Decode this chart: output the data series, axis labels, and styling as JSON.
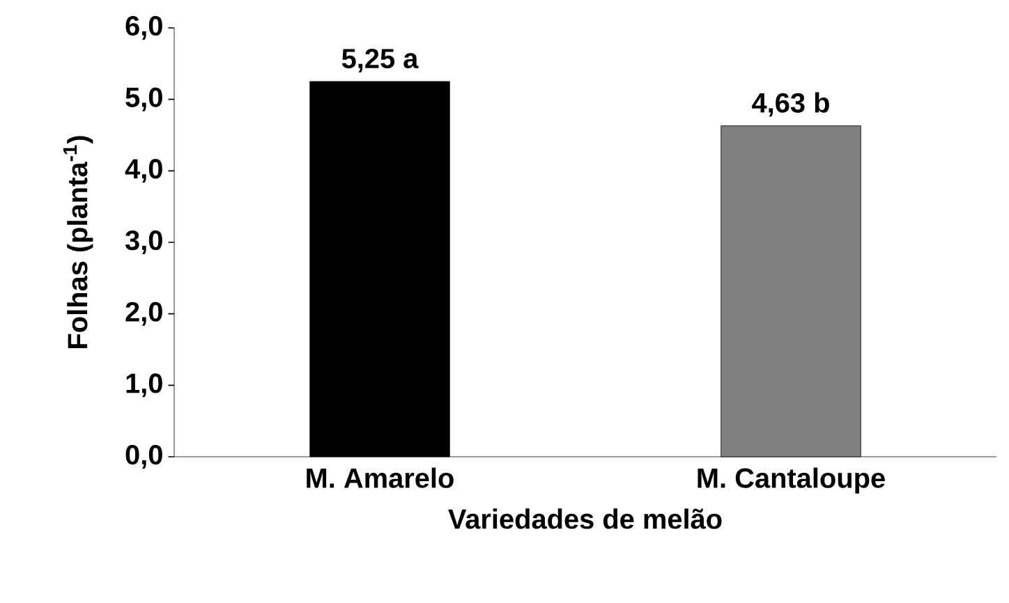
{
  "chart_data": {
    "type": "bar",
    "xlabel": "Variedades de melão",
    "ylabel": "Folhas (planta$^{-1}$)",
    "categories": [
      "M. Amarelo",
      "M. Cantaloupe"
    ],
    "values": [
      5.25,
      4.63
    ],
    "colors": [
      "#000000",
      "#808080"
    ],
    "value_labels": [
      "5,25 a",
      "4,63 b"
    ],
    "ylim": [
      0,
      6
    ],
    "yticks": [
      {
        "value": 0,
        "label": "0,0"
      },
      {
        "value": 1,
        "label": "1,0"
      },
      {
        "value": 2,
        "label": "2,0"
      },
      {
        "value": 3,
        "label": "3,0"
      },
      {
        "value": 4,
        "label": "4,0"
      },
      {
        "value": 5,
        "label": "5,0"
      },
      {
        "value": 6,
        "label": "6,0"
      }
    ],
    "grid": false
  }
}
